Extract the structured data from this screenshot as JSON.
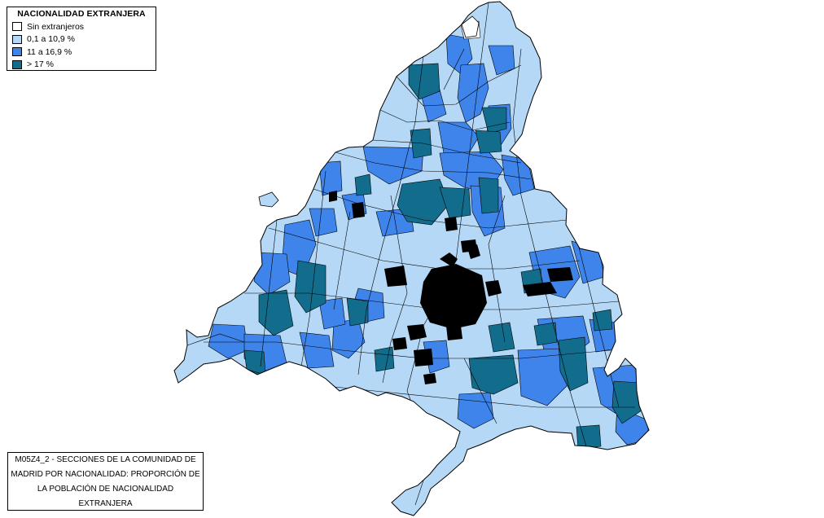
{
  "legend": {
    "title": "NACIONALIDAD EXTRANJERA",
    "items": [
      {
        "label": "Sin extranjeros",
        "color": "#ffffff"
      },
      {
        "label": "0,1 a 10,9 %",
        "color": "#b4d8f6"
      },
      {
        "label": "11 a 16,9 %",
        "color": "#3f84ea"
      },
      {
        "label": "> 17 %",
        "color": "#126c8c"
      }
    ]
  },
  "caption": {
    "lines": [
      "M05Z4_2 - SECCIONES DE LA COMUNIDAD DE",
      "MADRID POR NACIONALIDAD: PROPORCIÓN DE",
      "LA POBLACIÓN DE NACIONALIDAD",
      "EXTRANJERA"
    ]
  },
  "map": {
    "boundary_color": "#000000",
    "urban_core_color": "#000000"
  }
}
